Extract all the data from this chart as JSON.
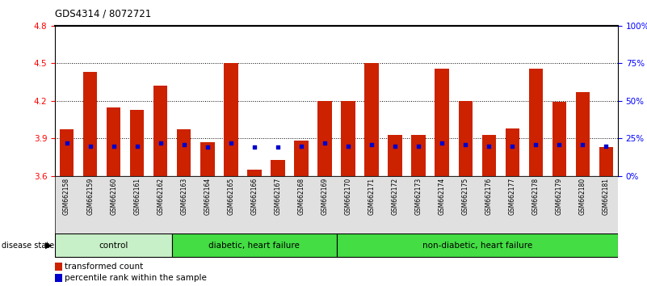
{
  "title": "GDS4314 / 8072721",
  "samples": [
    "GSM662158",
    "GSM662159",
    "GSM662160",
    "GSM662161",
    "GSM662162",
    "GSM662163",
    "GSM662164",
    "GSM662165",
    "GSM662166",
    "GSM662167",
    "GSM662168",
    "GSM662169",
    "GSM662170",
    "GSM662171",
    "GSM662172",
    "GSM662173",
    "GSM662174",
    "GSM662175",
    "GSM662176",
    "GSM662177",
    "GSM662178",
    "GSM662179",
    "GSM662180",
    "GSM662181"
  ],
  "transformed_count": [
    3.97,
    4.43,
    4.15,
    4.13,
    4.32,
    3.97,
    3.87,
    4.5,
    3.65,
    3.73,
    3.88,
    4.2,
    4.2,
    4.5,
    3.93,
    3.93,
    4.46,
    4.2,
    3.93,
    3.98,
    4.46,
    4.19,
    4.27,
    3.83
  ],
  "percentile_rank": [
    22,
    20,
    20,
    20,
    22,
    21,
    19,
    22,
    19,
    19,
    20,
    22,
    20,
    21,
    20,
    20,
    22,
    21,
    20,
    20,
    21,
    21,
    21,
    20
  ],
  "groups": [
    {
      "label": "control",
      "start": 0,
      "end": 5,
      "color": "#C8F0C8"
    },
    {
      "label": "diabetic, heart failure",
      "start": 5,
      "end": 12,
      "color": "#44DD44"
    },
    {
      "label": "non-diabetic, heart failure",
      "start": 12,
      "end": 24,
      "color": "#44DD44"
    }
  ],
  "ylim_left": [
    3.6,
    4.8
  ],
  "ylim_right": [
    0,
    100
  ],
  "yticks_left": [
    3.6,
    3.9,
    4.2,
    4.5,
    4.8
  ],
  "yticks_right": [
    0,
    25,
    50,
    75,
    100
  ],
  "bar_color": "#CC2200",
  "percentile_color": "#0000CC",
  "background_color": "#FFFFFF",
  "bar_bottom": 3.6,
  "legend_items": [
    {
      "label": "transformed count",
      "color": "#CC2200"
    },
    {
      "label": "percentile rank within the sample",
      "color": "#0000CC"
    }
  ]
}
